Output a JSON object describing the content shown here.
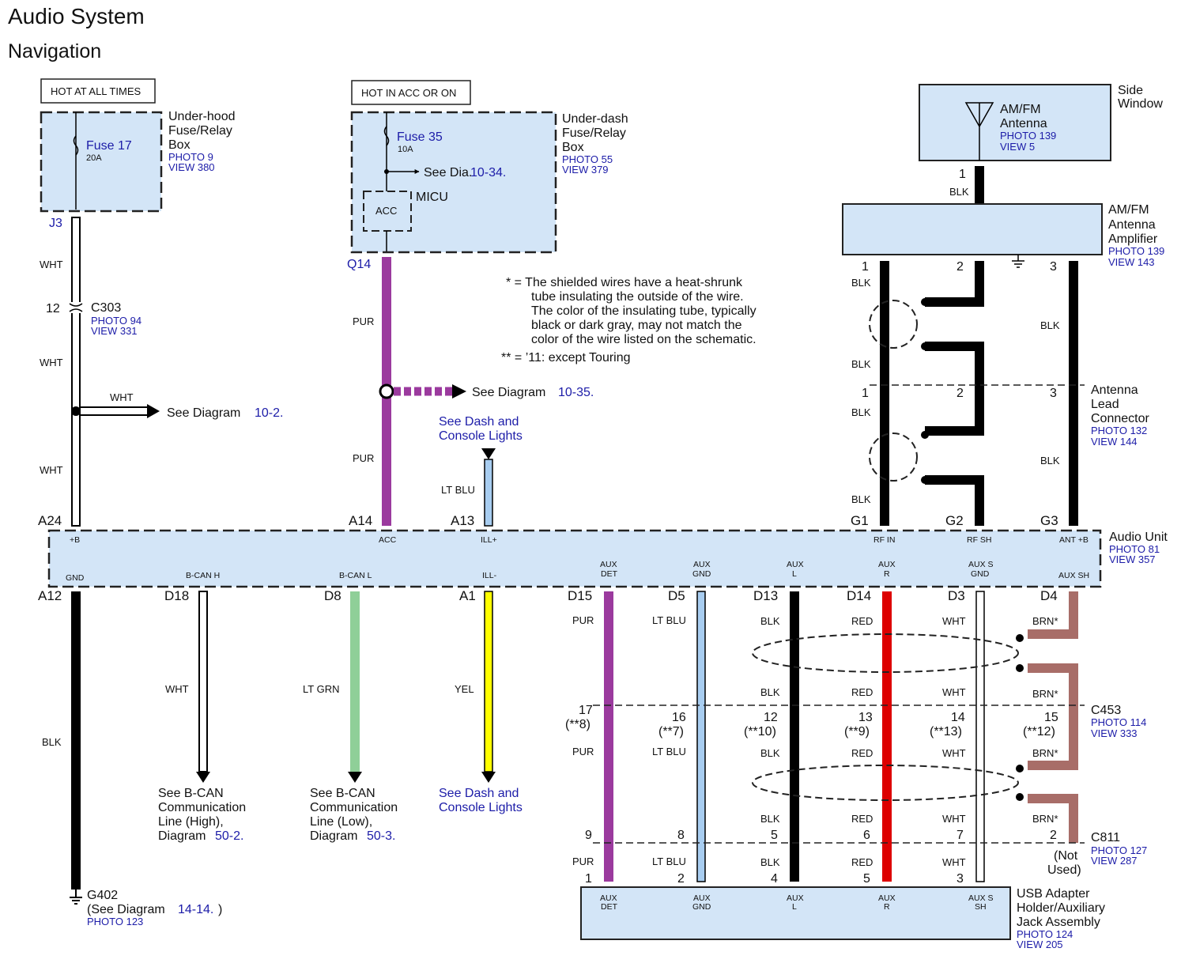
{
  "title": "Audio System",
  "subtitle": "Navigation",
  "colors": {
    "box_fill": "#d3e5f7",
    "link_blue": "#1c1ca8",
    "PUR": "#9b3a9e",
    "LT BLU": "#a8cdf0",
    "LT GRN": "#8fcf98",
    "YEL": "#ffff00",
    "RED": "#dd0000",
    "BLK": "#000000",
    "WHT": "#ffffff",
    "BRN": "#a86d68"
  },
  "notes": {
    "n1a": "* = The shielded wires have a heat-shrunk",
    "n1b": "tube insulating the outside of the wire.",
    "n1c": "The color of the insulating tube, typically",
    "n1d": "black or dark gray, may not match the",
    "n1e": "color of the wire listed on the schematic.",
    "n2": "** =  ’11: except Touring"
  },
  "underhood": {
    "hot": "HOT AT ALL TIMES",
    "fuse": "Fuse 17",
    "amp": "20A",
    "l1": "Under-hood",
    "l2": "Fuse/Relay",
    "l3": "Box",
    "photo": "PHOTO 9",
    "view": "VIEW 380",
    "term": "J3"
  },
  "underdash": {
    "hot": "HOT IN ACC OR ON",
    "fuse": "Fuse 35",
    "amp": "10A",
    "see": "See Dia.",
    "see_ref": "10-34.",
    "micu": "MICU",
    "acc": "ACC",
    "l1": "Under-dash",
    "l2": "Fuse/Relay",
    "l3": "Box",
    "photo": "PHOTO 55",
    "view": "VIEW 379",
    "term": "Q14"
  },
  "c303": {
    "pin": "12",
    "name": "C303",
    "photo": "PHOTO 94",
    "view": "VIEW 331"
  },
  "wires": {
    "wht": "WHT",
    "pur": "PUR",
    "ltblu": "LT BLU",
    "blk": "BLK",
    "ltgrn": "LT GRN",
    "yel": "YEL",
    "red": "RED",
    "brn": "BRN*"
  },
  "see_10_2": {
    "text": "See Diagram",
    "ref": "10-2."
  },
  "see_10_35": {
    "text": "See Diagram",
    "ref": "10-35."
  },
  "dash_lights_top": {
    "l1": "See Dash and",
    "l2": "Console Lights"
  },
  "antenna": {
    "side1": "Side",
    "side2": "Window",
    "l1": "AM/FM",
    "l2": "Antenna",
    "photo": "PHOTO 139",
    "view": "VIEW 5",
    "pin": "1"
  },
  "amplifier": {
    "l1": "AM/FM",
    "l2": "Antenna",
    "l3": "Amplifier",
    "photo": "PHOTO 139",
    "view": "VIEW 143",
    "pins": [
      "1",
      "2",
      "3"
    ]
  },
  "lead_conn": {
    "l1": "Antenna",
    "l2": "Lead",
    "l3": "Connector",
    "photo": "PHOTO 132",
    "view": "VIEW 144",
    "pins": [
      "1",
      "2",
      "3"
    ]
  },
  "audio_unit": {
    "name": "Audio Unit",
    "photo": "PHOTO 81",
    "view": "VIEW 357",
    "top_terms": [
      "A24",
      "A14",
      "A13",
      "G1",
      "G2",
      "G3"
    ],
    "top_pins": [
      "+B",
      "ACC",
      "ILL+",
      "RF IN",
      "RF SH",
      "ANT +B"
    ],
    "bottom_terms": [
      "A12",
      "D18",
      "D8",
      "A1",
      "D15",
      "D5",
      "D13",
      "D14",
      "D3",
      "D4"
    ],
    "bottom_pins": [
      "GND",
      "B-CAN H",
      "B-CAN L",
      "ILL-",
      "AUX",
      "DET",
      "AUX",
      "GND",
      "AUX",
      "L",
      "AUX",
      "R",
      "AUX S",
      "GND",
      "AUX SH"
    ]
  },
  "g402": {
    "name": "G402",
    "see": "(See Diagram",
    "ref": "14-14.",
    "close": ")",
    "photo": "PHOTO 123"
  },
  "bcan_h": {
    "l1": "See B-CAN",
    "l2": "Communication",
    "l3": "Line (High),",
    "l4": "Diagram",
    "ref": "50-2."
  },
  "bcan_l": {
    "l1": "See B-CAN",
    "l2": "Communication",
    "l3": "Line (Low),",
    "l4": "Diagram",
    "ref": "50-3."
  },
  "dash_lights_bottom": {
    "l1": "See Dash and",
    "l2": "Console Lights"
  },
  "c453": {
    "name": "C453",
    "photo": "PHOTO 114",
    "view": "VIEW 333",
    "pins": [
      "17",
      "16",
      "12",
      "13",
      "14",
      "15"
    ],
    "notes": [
      "(**8)",
      "(**7)",
      "(**10)",
      "(**9)",
      "(**13)",
      "(**12)"
    ]
  },
  "c811": {
    "name": "C811",
    "photo": "PHOTO 127",
    "view": "VIEW 287",
    "pins": [
      "9",
      "8",
      "5",
      "6",
      "7",
      "2"
    ],
    "not_used1": "(Not",
    "not_used2": "Used)"
  },
  "usb": {
    "l1": "USB Adapter",
    "l2": "Holder/Auxiliary",
    "l3": "Jack Assembly",
    "photo": "PHOTO 124",
    "view": "VIEW 205",
    "pins_num": [
      "1",
      "2",
      "4",
      "5",
      "3"
    ],
    "pins": [
      "AUX",
      "DET",
      "AUX",
      "GND",
      "AUX",
      "L",
      "AUX",
      "R",
      "AUX S",
      "SH"
    ]
  }
}
